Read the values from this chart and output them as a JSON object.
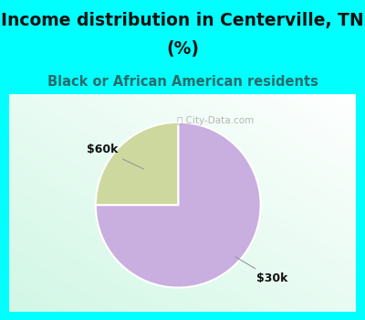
{
  "title_line1": "Income distribution in Centerville, TN",
  "title_line2": "(%)",
  "subtitle": "Black or African American residents",
  "slices": [
    75,
    25
  ],
  "colors": [
    "#c9aee0",
    "#cdd89e"
  ],
  "header_color": "#00ffff",
  "title_fontsize": 13.5,
  "subtitle_fontsize": 10.5,
  "watermark": "City-Data.com",
  "label_60k": "$60k",
  "label_30k": "$30k",
  "chart_border_color": "#00ffff",
  "chart_interior_bg": "#f0faf5"
}
